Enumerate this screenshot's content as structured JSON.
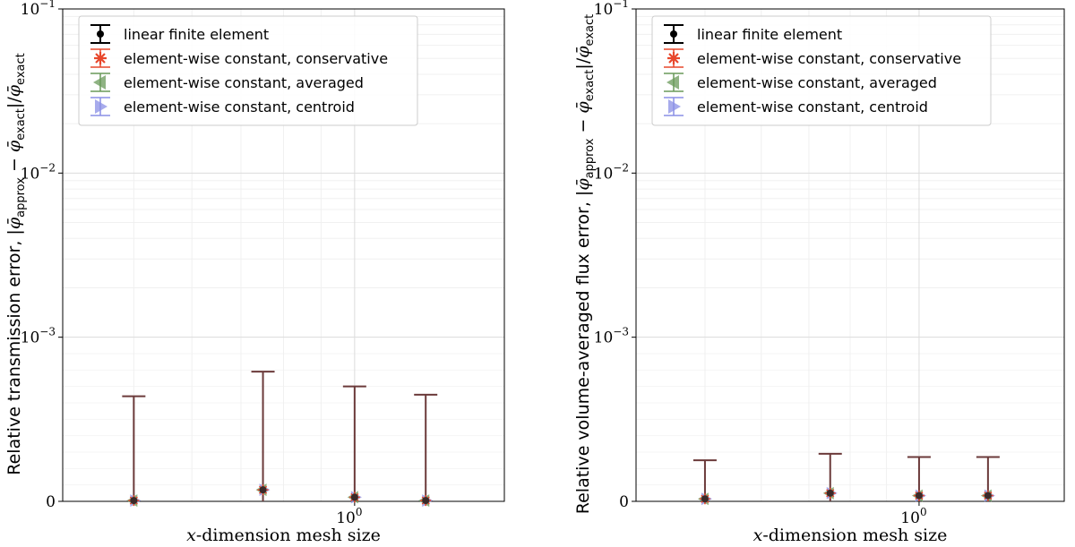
{
  "chart_data": [
    {
      "type": "scatter",
      "title": "",
      "xlabel_math": "x",
      "xlabel_text": "-dimension mesh size",
      "ylabel_text": "Relative transmission error, ",
      "ylabel_expr": {
        "open": "|",
        "phi": "φ̄",
        "sub_approx": "approx",
        "minus": " − ",
        "sub_exact": "exact",
        "close": "|/"
      },
      "yscale": "symlog",
      "y_ticks": [
        {
          "label": "0",
          "value": 0
        },
        {
          "label": "10",
          "exp": "−3",
          "value": 0.001
        },
        {
          "label": "10",
          "exp": "−2",
          "value": 0.01
        },
        {
          "label": "10",
          "exp": "−1",
          "value": 0.1
        }
      ],
      "x_ticks": [
        {
          "label": "10",
          "exp": "0",
          "value": 1
        }
      ],
      "grid": true,
      "legend_position": "top-left",
      "legend": [
        {
          "label": "linear finite element",
          "color": "#000000",
          "marker": "circle"
        },
        {
          "label": "element-wise constant, conservative",
          "color": "#e8472c",
          "marker": "star"
        },
        {
          "label": "element-wise constant, averaged",
          "color": "#6a9a5a",
          "marker": "triangle-left"
        },
        {
          "label": "element-wise constant, centroid",
          "color": "#8a8fe6",
          "marker": "triangle-right"
        }
      ],
      "x": [
        0.5,
        0.75,
        1.0,
        1.25
      ],
      "values": [
        5e-06,
        7e-05,
        2.5e-05,
        5e-06
      ],
      "error_upper": [
        0.00064,
        0.00079,
        0.0007,
        0.00065
      ],
      "error_color": "#6b3a3a"
    },
    {
      "type": "scatter",
      "title": "",
      "xlabel_math": "x",
      "xlabel_text": "-dimension mesh size",
      "ylabel_text": "Relative volume-averaged flux error, ",
      "ylabel_expr": {
        "open": "|",
        "phi": "φ̄",
        "sub_approx": "approx",
        "minus": " − ",
        "sub_exact": "exact",
        "close": "|/"
      },
      "yscale": "symlog",
      "y_ticks": [
        {
          "label": "0",
          "value": 0
        },
        {
          "label": "10",
          "exp": "−3",
          "value": 0.001
        },
        {
          "label": "10",
          "exp": "−2",
          "value": 0.01
        },
        {
          "label": "10",
          "exp": "−1",
          "value": 0.1
        }
      ],
      "x_ticks": [
        {
          "label": "10",
          "exp": "0",
          "value": 1
        }
      ],
      "grid": true,
      "legend_position": "top-left",
      "legend": [
        {
          "label": "linear finite element",
          "color": "#000000",
          "marker": "circle"
        },
        {
          "label": "element-wise constant, conservative",
          "color": "#e8472c",
          "marker": "star"
        },
        {
          "label": "element-wise constant, averaged",
          "color": "#6a9a5a",
          "marker": "triangle-left"
        },
        {
          "label": "element-wise constant, centroid",
          "color": "#8a8fe6",
          "marker": "triangle-right"
        }
      ],
      "x": [
        0.5,
        0.75,
        1.0,
        1.25
      ],
      "values": [
        1.5e-05,
        5e-05,
        3.5e-05,
        3.5e-05
      ],
      "error_upper": [
        0.00025,
        0.00029,
        0.00027,
        0.00027
      ],
      "error_color": "#6b3a3a"
    }
  ]
}
